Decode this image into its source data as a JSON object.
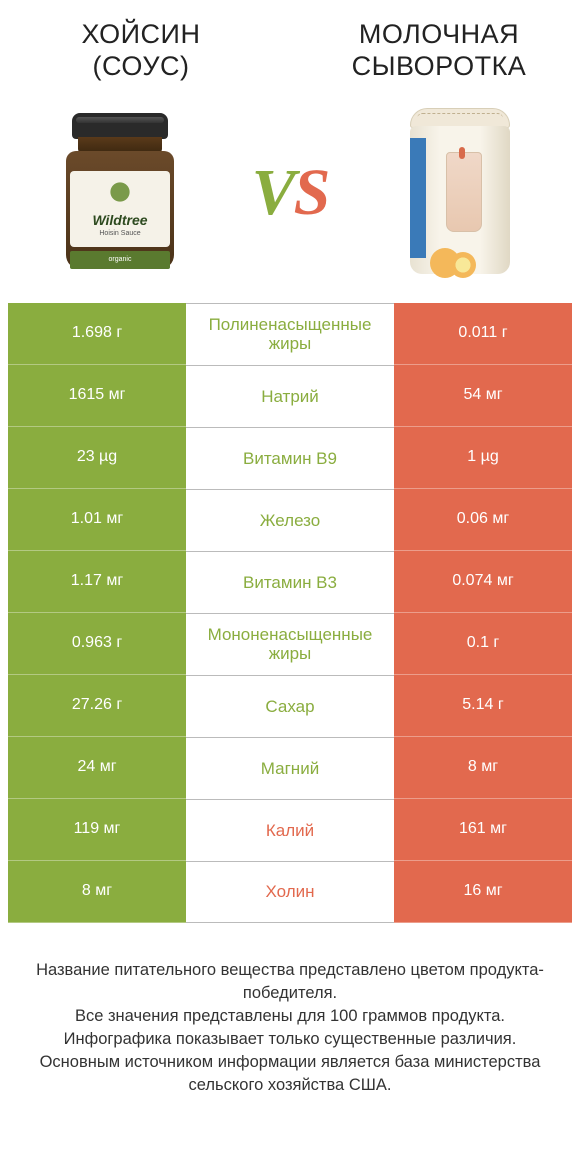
{
  "header": {
    "left_title_line1": "ХОЙСИН",
    "left_title_line2": "(СОУС)",
    "right_title_line1": "МОЛОЧНАЯ",
    "right_title_line2": "СЫВОРОТКА"
  },
  "vs": {
    "v": "V",
    "s": "S"
  },
  "colors": {
    "left_bg": "#8aad3f",
    "right_bg": "#e2694e",
    "mid_text_left": "#8aad3f",
    "mid_text_right": "#e2694e",
    "background": "#ffffff"
  },
  "table": {
    "rows": [
      {
        "left": "1.698 г",
        "label": "Полиненасыщенные жиры",
        "right": "0.011 г",
        "winner": "left"
      },
      {
        "left": "1615 мг",
        "label": "Натрий",
        "right": "54 мг",
        "winner": "left"
      },
      {
        "left": "23 µg",
        "label": "Витамин B9",
        "right": "1 µg",
        "winner": "left"
      },
      {
        "left": "1.01 мг",
        "label": "Железо",
        "right": "0.06 мг",
        "winner": "left"
      },
      {
        "left": "1.17 мг",
        "label": "Витамин B3",
        "right": "0.074 мг",
        "winner": "left"
      },
      {
        "left": "0.963 г",
        "label": "Мононенасыщенные жиры",
        "right": "0.1 г",
        "winner": "left"
      },
      {
        "left": "27.26 г",
        "label": "Сахар",
        "right": "5.14 г",
        "winner": "left"
      },
      {
        "left": "24 мг",
        "label": "Магний",
        "right": "8 мг",
        "winner": "left"
      },
      {
        "left": "119 мг",
        "label": "Калий",
        "right": "161 мг",
        "winner": "right"
      },
      {
        "left": "8 мг",
        "label": "Холин",
        "right": "16 мг",
        "winner": "right"
      }
    ]
  },
  "footer": {
    "line1": "Название питательного вещества представлено цветом продукта-победителя.",
    "line2": "Все значения представлены для 100 граммов продукта.",
    "line3": "Инфографика показывает только существенные различия.",
    "line4": "Основным источником информации является база министерства сельского хозяйства США."
  },
  "jar_label": {
    "brand": "Wildtree",
    "sub": "Hoisin Sauce",
    "band": "organic"
  }
}
